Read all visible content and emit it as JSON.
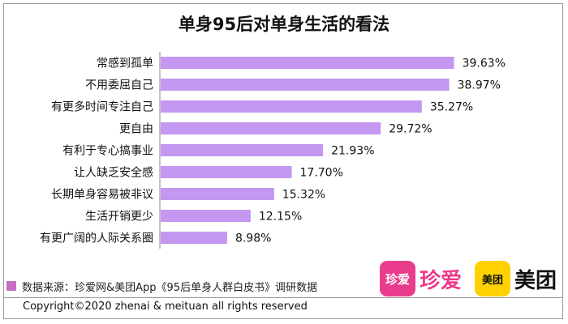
{
  "chart_data": {
    "type": "bar",
    "orientation": "horizontal",
    "title": "单身95后对单身生活的看法",
    "categories": [
      "常感到孤单",
      "不用委屈自己",
      "有更多时间专注自己",
      "更自由",
      "有利于专心搞事业",
      "让人缺乏安全感",
      "长期单身容易被非议",
      "生活开销更少",
      "有更广阔的人际关系圈"
    ],
    "values": [
      39.63,
      38.97,
      35.27,
      29.72,
      21.93,
      17.7,
      15.32,
      12.15,
      8.98
    ],
    "value_labels": [
      "39.63%",
      "38.97%",
      "35.27%",
      "29.72%",
      "21.93%",
      "17.70%",
      "15.32%",
      "12.15%",
      "8.98%"
    ],
    "bar_color": "#c497f0",
    "xlim": [
      0,
      40
    ],
    "legend_position": "bottom-left",
    "grid": false
  },
  "legend": {
    "text": "数据来源：珍爱网&美团App《95后单身人群白皮书》调研数据",
    "color": "#c66fc0"
  },
  "logos": {
    "zhenai_badge": "珍爱",
    "zhenai_word": "珍爱",
    "meituan_badge": "美团",
    "meituan_word": "美团"
  },
  "copyright": "Copyright©2020 zhenai & meituan all rights reserved"
}
